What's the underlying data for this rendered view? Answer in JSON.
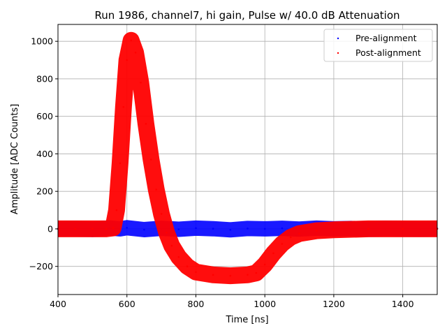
{
  "chart_data": {
    "type": "scatter",
    "title": "Run 1986, channel7, hi gain, Pulse w/ 40.0 dB Attenuation",
    "xlabel": "Time [ns]",
    "ylabel": "Amplitude [ADC Counts]",
    "xlim": [
      400,
      1500
    ],
    "ylim": [
      -350,
      1090
    ],
    "xticks": [
      400,
      600,
      800,
      1000,
      1200,
      1400
    ],
    "yticks": [
      -200,
      0,
      200,
      400,
      600,
      800,
      1000
    ],
    "grid": true,
    "legend_position": "top-right",
    "series": [
      {
        "name": "Pre-alignment",
        "color": "#0000ff",
        "marker": "dot",
        "points": [
          [
            400,
            0
          ],
          [
            450,
            2
          ],
          [
            500,
            -3
          ],
          [
            550,
            5
          ],
          [
            580,
            0
          ],
          [
            600,
            6
          ],
          [
            650,
            -4
          ],
          [
            700,
            3
          ],
          [
            750,
            -2
          ],
          [
            800,
            4
          ],
          [
            850,
            1
          ],
          [
            900,
            -5
          ],
          [
            950,
            2
          ],
          [
            1000,
            0
          ],
          [
            1050,
            3
          ],
          [
            1100,
            -1
          ],
          [
            1150,
            4
          ],
          [
            1200,
            0
          ],
          [
            1250,
            2
          ],
          [
            1300,
            -2
          ],
          [
            1350,
            3
          ],
          [
            1400,
            1
          ],
          [
            1450,
            -1
          ],
          [
            1500,
            2
          ]
        ]
      },
      {
        "name": "Post-alignment",
        "color": "#ff0000",
        "marker": "dot",
        "points": [
          [
            400,
            0
          ],
          [
            450,
            0
          ],
          [
            500,
            0
          ],
          [
            540,
            0
          ],
          [
            560,
            5
          ],
          [
            570,
            100
          ],
          [
            580,
            350
          ],
          [
            590,
            650
          ],
          [
            600,
            900
          ],
          [
            612,
            1005
          ],
          [
            625,
            940
          ],
          [
            640,
            780
          ],
          [
            655,
            560
          ],
          [
            670,
            370
          ],
          [
            685,
            210
          ],
          [
            700,
            80
          ],
          [
            715,
            -20
          ],
          [
            730,
            -90
          ],
          [
            750,
            -150
          ],
          [
            775,
            -200
          ],
          [
            800,
            -230
          ],
          [
            850,
            -245
          ],
          [
            900,
            -250
          ],
          [
            950,
            -245
          ],
          [
            975,
            -235
          ],
          [
            1000,
            -190
          ],
          [
            1025,
            -130
          ],
          [
            1050,
            -80
          ],
          [
            1075,
            -45
          ],
          [
            1100,
            -25
          ],
          [
            1150,
            -10
          ],
          [
            1200,
            -5
          ],
          [
            1300,
            0
          ],
          [
            1400,
            0
          ],
          [
            1500,
            0
          ]
        ]
      }
    ]
  }
}
